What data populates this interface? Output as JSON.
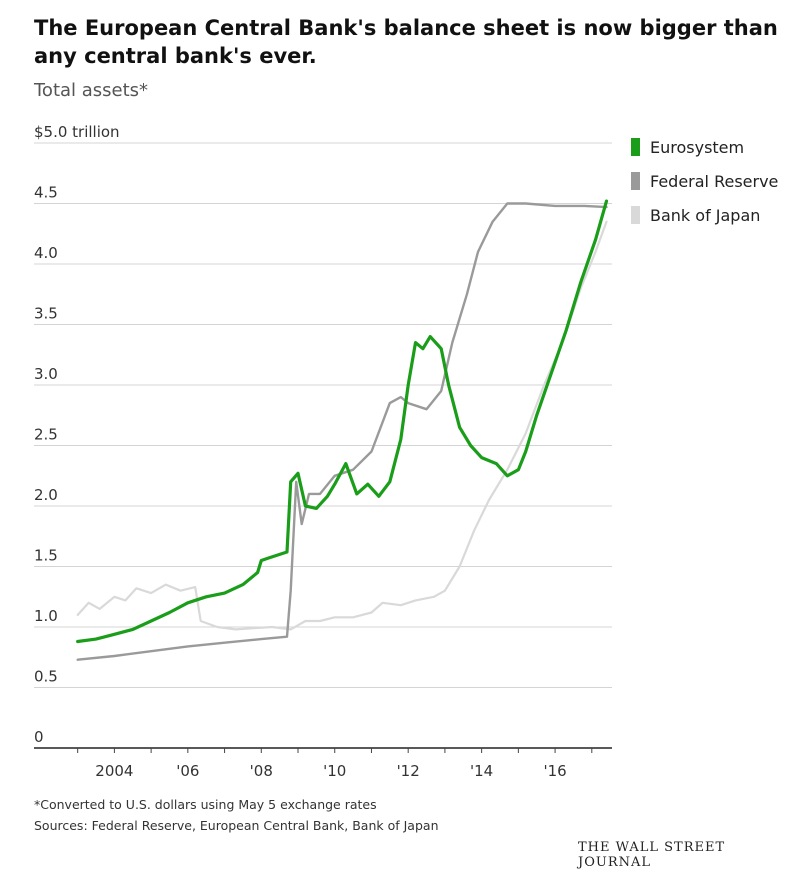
{
  "header": {
    "title": "The European Central Bank's balance sheet is now bigger than any central bank's ever.",
    "subtitle": "Total assets*"
  },
  "footer": {
    "footnote": "*Converted to U.S. dollars using May 5 exchange rates",
    "sources": "Sources: Federal Reserve, European Central Bank, Bank of Japan",
    "brand": "THE WALL STREET JOURNAL"
  },
  "chart_data": {
    "type": "line",
    "title": "The European Central Bank's balance sheet is now bigger than any central bank's ever.",
    "subtitle": "Total assets*",
    "ylabel": "",
    "xlabel": "",
    "ylim": [
      0,
      5.0
    ],
    "xlim": [
      2002.9,
      2017.55
    ],
    "yticks": [
      0,
      0.5,
      1.0,
      1.5,
      2.0,
      2.5,
      3.0,
      3.5,
      4.0,
      4.5,
      5.0
    ],
    "ytick_labels": [
      "0",
      "0.5",
      "1.0",
      "1.5",
      "2.0",
      "2.5",
      "3.0",
      "3.5",
      "4.0",
      "4.5",
      "$5.0 trillion"
    ],
    "xticks": [
      2004,
      2006,
      2008,
      2010,
      2012,
      2014,
      2016
    ],
    "xtick_labels": [
      "2004",
      "'06",
      "'08",
      "'10",
      "'12",
      "'14",
      "'16"
    ],
    "grid": true,
    "legend_position": "top-right",
    "series": [
      {
        "name": "Bank of Japan",
        "color": "#d9d9d9",
        "points": [
          [
            2003.0,
            1.1
          ],
          [
            2003.3,
            1.2
          ],
          [
            2003.6,
            1.15
          ],
          [
            2004.0,
            1.25
          ],
          [
            2004.3,
            1.22
          ],
          [
            2004.6,
            1.32
          ],
          [
            2005.0,
            1.28
          ],
          [
            2005.4,
            1.35
          ],
          [
            2005.8,
            1.3
          ],
          [
            2006.2,
            1.33
          ],
          [
            2006.35,
            1.05
          ],
          [
            2006.8,
            1.0
          ],
          [
            2007.3,
            0.98
          ],
          [
            2007.8,
            0.99
          ],
          [
            2008.3,
            1.0
          ],
          [
            2008.8,
            0.98
          ],
          [
            2009.2,
            1.05
          ],
          [
            2009.6,
            1.05
          ],
          [
            2010.0,
            1.08
          ],
          [
            2010.5,
            1.08
          ],
          [
            2011.0,
            1.12
          ],
          [
            2011.3,
            1.2
          ],
          [
            2011.8,
            1.18
          ],
          [
            2012.2,
            1.22
          ],
          [
            2012.7,
            1.25
          ],
          [
            2013.0,
            1.3
          ],
          [
            2013.4,
            1.5
          ],
          [
            2013.8,
            1.8
          ],
          [
            2014.2,
            2.05
          ],
          [
            2014.7,
            2.3
          ],
          [
            2015.2,
            2.6
          ],
          [
            2015.7,
            3.0
          ],
          [
            2016.2,
            3.35
          ],
          [
            2016.7,
            3.8
          ],
          [
            2017.1,
            4.1
          ],
          [
            2017.4,
            4.35
          ]
        ]
      },
      {
        "name": "Federal Reserve",
        "color": "#9a9a9a",
        "points": [
          [
            2003.0,
            0.73
          ],
          [
            2004.0,
            0.76
          ],
          [
            2005.0,
            0.8
          ],
          [
            2006.0,
            0.84
          ],
          [
            2007.0,
            0.87
          ],
          [
            2008.0,
            0.9
          ],
          [
            2008.7,
            0.92
          ],
          [
            2008.8,
            1.3
          ],
          [
            2008.95,
            2.2
          ],
          [
            2009.1,
            1.85
          ],
          [
            2009.3,
            2.1
          ],
          [
            2009.6,
            2.1
          ],
          [
            2010.0,
            2.25
          ],
          [
            2010.5,
            2.3
          ],
          [
            2011.0,
            2.45
          ],
          [
            2011.5,
            2.85
          ],
          [
            2011.8,
            2.9
          ],
          [
            2012.0,
            2.85
          ],
          [
            2012.5,
            2.8
          ],
          [
            2012.9,
            2.95
          ],
          [
            2013.2,
            3.35
          ],
          [
            2013.6,
            3.75
          ],
          [
            2013.9,
            4.1
          ],
          [
            2014.3,
            4.35
          ],
          [
            2014.7,
            4.5
          ],
          [
            2015.2,
            4.5
          ],
          [
            2016.0,
            4.48
          ],
          [
            2016.8,
            4.48
          ],
          [
            2017.4,
            4.47
          ]
        ]
      },
      {
        "name": "Eurosystem",
        "color": "#1a9e1a",
        "points": [
          [
            2003.0,
            0.88
          ],
          [
            2003.5,
            0.9
          ],
          [
            2004.0,
            0.94
          ],
          [
            2004.5,
            0.98
          ],
          [
            2005.0,
            1.05
          ],
          [
            2005.5,
            1.12
          ],
          [
            2006.0,
            1.2
          ],
          [
            2006.5,
            1.25
          ],
          [
            2007.0,
            1.28
          ],
          [
            2007.5,
            1.35
          ],
          [
            2007.9,
            1.45
          ],
          [
            2008.0,
            1.55
          ],
          [
            2008.2,
            1.57
          ],
          [
            2008.5,
            1.6
          ],
          [
            2008.7,
            1.62
          ],
          [
            2008.8,
            2.2
          ],
          [
            2009.0,
            2.27
          ],
          [
            2009.2,
            2.0
          ],
          [
            2009.5,
            1.98
          ],
          [
            2009.8,
            2.08
          ],
          [
            2010.0,
            2.18
          ],
          [
            2010.3,
            2.35
          ],
          [
            2010.6,
            2.1
          ],
          [
            2010.9,
            2.18
          ],
          [
            2011.2,
            2.08
          ],
          [
            2011.5,
            2.2
          ],
          [
            2011.8,
            2.55
          ],
          [
            2012.0,
            3.0
          ],
          [
            2012.2,
            3.35
          ],
          [
            2012.4,
            3.3
          ],
          [
            2012.6,
            3.4
          ],
          [
            2012.9,
            3.3
          ],
          [
            2013.1,
            3.0
          ],
          [
            2013.4,
            2.65
          ],
          [
            2013.7,
            2.5
          ],
          [
            2014.0,
            2.4
          ],
          [
            2014.4,
            2.35
          ],
          [
            2014.7,
            2.25
          ],
          [
            2015.0,
            2.3
          ],
          [
            2015.2,
            2.45
          ],
          [
            2015.5,
            2.75
          ],
          [
            2015.9,
            3.1
          ],
          [
            2016.3,
            3.45
          ],
          [
            2016.7,
            3.85
          ],
          [
            2017.1,
            4.2
          ],
          [
            2017.4,
            4.52
          ]
        ]
      }
    ]
  }
}
